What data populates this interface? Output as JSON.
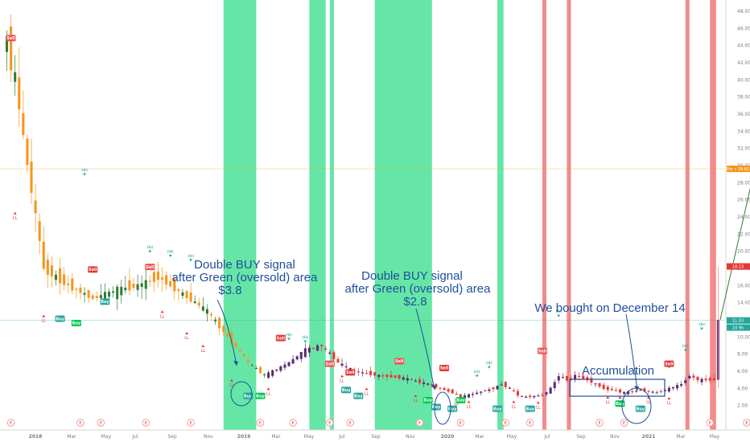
{
  "chart_data": {
    "type": "candlestick",
    "ylim": [
      0,
      48
    ],
    "y_ticks": [
      "2.00",
      "4.00",
      "6.00",
      "8.00",
      "10.00",
      "12.00",
      "14.00",
      "16.00",
      "18.00",
      "20.00",
      "22.00",
      "24.00",
      "26.00",
      "28.00",
      "30.00",
      "32.00",
      "34.00",
      "36.00",
      "38.00",
      "40.00",
      "42.00",
      "44.00",
      "46.00",
      "48.00"
    ],
    "x_ticks": [
      "2018",
      "Mar",
      "May",
      "Jul",
      "Sep",
      "Nov",
      "2019",
      "Mar",
      "May",
      "Jul",
      "Sep",
      "Nov",
      "2020",
      "Mar",
      "May",
      "Jul",
      "Sep",
      "Nov",
      "2021",
      "Mar",
      "May"
    ],
    "colors": {
      "bull": "#2e7d32",
      "bear": "#f7941d",
      "bull2": "#5b2c6f",
      "bear2": "#e53935",
      "oversold_zone": "#66e6a6",
      "overbought_zone": "#f28b8b",
      "arrow": "#1f4e9c",
      "target_line": "#f7941d",
      "price_line": "#26a69a"
    },
    "price_path": [
      [
        0,
        46
      ],
      [
        3,
        40
      ],
      [
        6,
        30
      ],
      [
        10,
        18
      ],
      [
        16,
        16
      ],
      [
        22,
        14.5
      ],
      [
        28,
        15.5
      ],
      [
        33,
        16
      ],
      [
        38,
        17
      ],
      [
        44,
        15
      ],
      [
        50,
        13
      ],
      [
        55,
        10
      ],
      [
        60,
        7
      ],
      [
        64,
        5.5
      ],
      [
        70,
        7
      ],
      [
        74,
        8.5
      ],
      [
        78,
        9
      ],
      [
        82,
        7
      ],
      [
        86,
        6
      ],
      [
        92,
        5.5
      ],
      [
        98,
        5.2
      ],
      [
        104,
        4.5
      ],
      [
        110,
        3.5
      ],
      [
        112,
        3
      ],
      [
        116,
        3.5
      ],
      [
        120,
        4
      ],
      [
        122,
        4.5
      ],
      [
        124,
        4
      ],
      [
        126,
        3.2
      ],
      [
        128,
        3
      ],
      [
        132,
        3.2
      ],
      [
        134,
        4
      ],
      [
        136,
        5.5
      ],
      [
        138,
        5
      ],
      [
        140,
        5.5
      ],
      [
        143,
        5
      ],
      [
        147,
        4
      ],
      [
        152,
        3.5
      ],
      [
        156,
        3.8
      ],
      [
        160,
        3.5
      ],
      [
        163,
        4
      ],
      [
        166,
        4.5
      ],
      [
        168,
        5.5
      ],
      [
        170,
        5
      ],
      [
        172,
        5
      ]
    ],
    "last_spike": [
      5,
      12
    ],
    "forecast": [
      12,
      29.7
    ],
    "oversold_zones": [
      [
        53,
        61
      ],
      [
        74,
        78
      ],
      [
        79,
        80
      ],
      [
        90,
        104
      ],
      [
        120,
        121.5
      ]
    ],
    "overbought_zones": [
      [
        131,
        132
      ],
      [
        137,
        138
      ],
      [
        166,
        167
      ],
      [
        172,
        173.5
      ]
    ],
    "hh_labels": [
      "HH",
      "HH",
      "HH",
      "HH",
      "HH",
      "HH",
      "HH",
      "HH",
      "HH",
      "HH",
      "HH",
      "HH"
    ],
    "ll_labels": [
      "LL",
      "LL",
      "LL",
      "LL",
      "LL",
      "LL",
      "LL",
      "LL",
      "LL",
      "LL",
      "LL",
      "LL",
      "LL",
      "LL",
      "LL",
      "LL",
      "LL",
      "LL"
    ],
    "buy_labels": [
      "Buy",
      "Buy",
      "Buy",
      "Buy",
      "Buy",
      "Buy",
      "Buy",
      "Buy",
      "Buy",
      "Buy",
      "Buy",
      "Buy",
      "Buy",
      "Buy",
      "Buy"
    ],
    "sell_labels": [
      "Sell",
      "Sell",
      "Sell",
      "Sell",
      "Sell",
      "Sell",
      "Sell",
      "Sell",
      "Sell",
      "Sell"
    ],
    "earnings_label": "E",
    "price_tags": [
      {
        "text": "Pro • 29.62",
        "value": 29.62,
        "color": "#f7941d"
      },
      {
        "text": "18.23",
        "value": 18.23,
        "color": "#e53935"
      },
      {
        "text": "11.93",
        "value": 11.93,
        "color": "#26a69a"
      },
      {
        "text": "2d 9h",
        "value": 11.1,
        "color": "#26a69a"
      }
    ],
    "annotations": [
      {
        "text": "Double BUY signal",
        "x": 304,
        "y": 334
      },
      {
        "text": "after Green (oversold) area",
        "x": 304,
        "y": 350
      },
      {
        "text": "$3.8",
        "x": 286,
        "y": 366
      },
      {
        "text": "Double BUY signal",
        "x": 512,
        "y": 348
      },
      {
        "text": "after Green (oversold) area",
        "x": 519,
        "y": 364
      },
      {
        "text": "$2.8",
        "x": 516,
        "y": 380
      },
      {
        "text": "We bought on December 14",
        "x": 758,
        "y": 388
      },
      {
        "text": "Accumulation",
        "x": 768,
        "y": 466
      }
    ]
  }
}
